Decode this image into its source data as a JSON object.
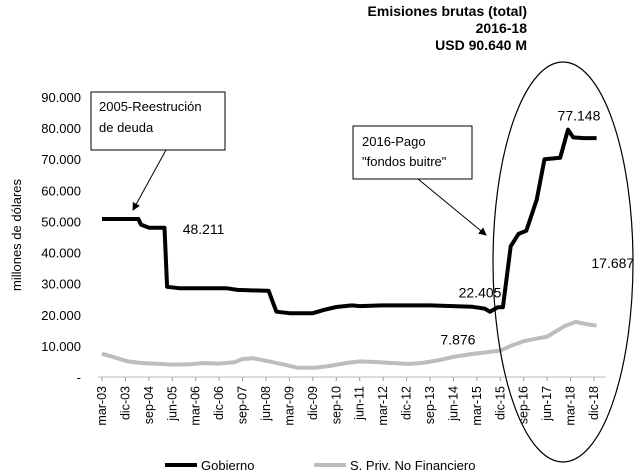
{
  "chart_data": {
    "type": "line",
    "title": [
      "Emisiones brutas (total)",
      "2016-18",
      "USD 90.640 M"
    ],
    "ylabel": "millones de dólares",
    "ylim": [
      0,
      90000
    ],
    "y_ticks": [
      "-",
      "10.000",
      "20.000",
      "30.000",
      "40.000",
      "50.000",
      "60.000",
      "70.000",
      "80.000",
      "90.000"
    ],
    "x_ticks": [
      "mar-03",
      "dic-03",
      "sep-04",
      "jun-05",
      "mar-06",
      "dic-06",
      "sep-07",
      "jun-08",
      "mar-09",
      "dic-09",
      "sep-10",
      "jun-11",
      "mar-12",
      "dic-12",
      "sep-13",
      "jun-14",
      "mar-15",
      "dic-15",
      "sep-16",
      "jun-17",
      "mar-18",
      "dic-18"
    ],
    "x_start": "2003-03",
    "grid": false,
    "legend_position": "bottom",
    "series": [
      {
        "name": "Gobierno",
        "color": "#000000",
        "points": [
          [
            "2003-03",
            50800
          ],
          [
            "2003-12",
            50800
          ],
          [
            "2004-05",
            50800
          ],
          [
            "2004-06",
            49000
          ],
          [
            "2004-09",
            48000
          ],
          [
            "2005-03",
            48000
          ],
          [
            "2005-04",
            29000
          ],
          [
            "2005-09",
            28500
          ],
          [
            "2006-06",
            28500
          ],
          [
            "2007-03",
            28500
          ],
          [
            "2007-07",
            28000
          ],
          [
            "2008-06",
            27700
          ],
          [
            "2008-07",
            27700
          ],
          [
            "2008-10",
            21000
          ],
          [
            "2009-03",
            20500
          ],
          [
            "2009-12",
            20500
          ],
          [
            "2010-04",
            21500
          ],
          [
            "2010-09",
            22500
          ],
          [
            "2011-03",
            23000
          ],
          [
            "2011-06",
            22800
          ],
          [
            "2012-03",
            23000
          ],
          [
            "2013-01",
            23000
          ],
          [
            "2013-09",
            23000
          ],
          [
            "2014-06",
            22800
          ],
          [
            "2015-01",
            22600
          ],
          [
            "2015-06",
            22000
          ],
          [
            "2015-08",
            21000
          ],
          [
            "2015-11",
            22400
          ],
          [
            "2016-01",
            22405
          ],
          [
            "2016-04",
            42000
          ],
          [
            "2016-07",
            46000
          ],
          [
            "2016-10",
            47000
          ],
          [
            "2017-02",
            57000
          ],
          [
            "2017-05",
            70000
          ],
          [
            "2017-11",
            70500
          ],
          [
            "2018-02",
            79500
          ],
          [
            "2018-04",
            77000
          ],
          [
            "2018-08",
            76800
          ],
          [
            "2019-01",
            76800
          ]
        ]
      },
      {
        "name": "S. Priv. No Financiero",
        "color": "#bdbdbd",
        "points": [
          [
            "2003-03",
            7500
          ],
          [
            "2003-09",
            6000
          ],
          [
            "2004-01",
            5000
          ],
          [
            "2004-06",
            4500
          ],
          [
            "2005-01",
            4200
          ],
          [
            "2005-06",
            4000
          ],
          [
            "2006-01",
            4100
          ],
          [
            "2006-06",
            4500
          ],
          [
            "2006-12",
            4300
          ],
          [
            "2007-06",
            4800
          ],
          [
            "2007-09",
            5800
          ],
          [
            "2008-01",
            6000
          ],
          [
            "2008-06",
            5200
          ],
          [
            "2009-01",
            4000
          ],
          [
            "2009-06",
            3000
          ],
          [
            "2010-01",
            3000
          ],
          [
            "2010-06",
            3500
          ],
          [
            "2011-01",
            4500
          ],
          [
            "2011-06",
            5000
          ],
          [
            "2012-01",
            4800
          ],
          [
            "2012-06",
            4500
          ],
          [
            "2013-01",
            4200
          ],
          [
            "2013-06",
            4500
          ],
          [
            "2014-01",
            5500
          ],
          [
            "2014-06",
            6500
          ],
          [
            "2015-01",
            7400
          ],
          [
            "2015-06",
            7876
          ],
          [
            "2015-12",
            8500
          ],
          [
            "2016-04",
            10000
          ],
          [
            "2016-09",
            11500
          ],
          [
            "2017-03",
            12500
          ],
          [
            "2017-06",
            13000
          ],
          [
            "2017-09",
            14500
          ],
          [
            "2018-01",
            16500
          ],
          [
            "2018-05",
            17700
          ],
          [
            "2018-09",
            17000
          ],
          [
            "2019-01",
            16500
          ]
        ]
      }
    ],
    "annotations": [
      {
        "text": "48.211",
        "at": [
          "2005-10",
          46000
        ]
      },
      {
        "text": "22.405",
        "at": [
          "2014-08",
          25500
        ]
      },
      {
        "text": "7.876",
        "at": [
          "2014-01",
          10500
        ]
      },
      {
        "text": "77.148",
        "at": [
          "2017-10",
          82500
        ]
      },
      {
        "text": "17.687",
        "at": [
          "2018-11",
          35000
        ]
      }
    ],
    "callouts": [
      {
        "lines": [
          "2005-Reestrución",
          "de deuda"
        ]
      },
      {
        "lines": [
          "2016-Pago",
          "\"fondos buitre\""
        ]
      }
    ]
  }
}
